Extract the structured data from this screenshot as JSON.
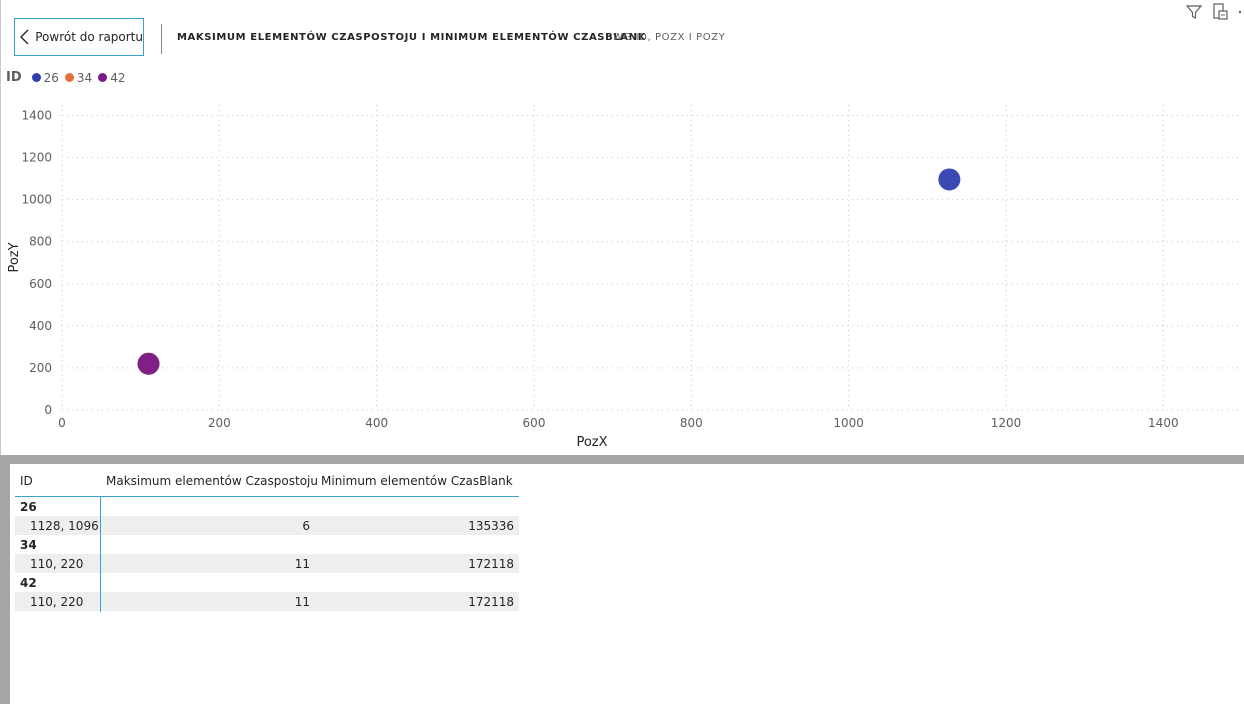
{
  "header": {
    "back_label": "Powrót do raportu",
    "title": "MAKSIMUM ELEMENTÓW CZASPOSTOJU I MINIMUM ELEMENTÓW CZASBLANK",
    "subtitle": "WG ID, POZX I POZY",
    "icons": [
      "filter-icon",
      "focus-mode-icon"
    ]
  },
  "legend": {
    "title": "ID",
    "items": [
      {
        "label": "26",
        "color": "#2f3fb0"
      },
      {
        "label": "34",
        "color": "#e0713a"
      },
      {
        "label": "42",
        "color": "#7a1a8a"
      }
    ]
  },
  "chart_data": {
    "type": "scatter",
    "xlabel": "PozX",
    "ylabel": "PozY",
    "xlim": [
      0,
      1500
    ],
    "ylim": [
      0,
      1450
    ],
    "x_ticks": [
      0,
      200,
      400,
      600,
      800,
      1000,
      1200,
      1400
    ],
    "y_ticks": [
      0,
      200,
      400,
      600,
      800,
      1000,
      1200,
      1400
    ],
    "grid": true,
    "legend_position": "top-left",
    "series": [
      {
        "name": "26",
        "color": "#2f3fb0",
        "points": [
          {
            "x": 1128,
            "y": 1096
          }
        ]
      },
      {
        "name": "34",
        "color": "#e0713a",
        "points": [
          {
            "x": 110,
            "y": 220
          }
        ]
      },
      {
        "name": "42",
        "color": "#7a1a8a",
        "points": [
          {
            "x": 110,
            "y": 220
          }
        ]
      }
    ]
  },
  "table": {
    "columns": [
      "ID",
      "Maksimum elementów Czaspostoju",
      "Minimum elementów CzasBlank"
    ],
    "groups": [
      {
        "id": "26",
        "detail": "1128, 1096",
        "max": "6",
        "min": "135336"
      },
      {
        "id": "34",
        "detail": "110, 220",
        "max": "11",
        "min": "172118"
      },
      {
        "id": "42",
        "detail": "110, 220",
        "max": "11",
        "min": "172118"
      }
    ]
  }
}
